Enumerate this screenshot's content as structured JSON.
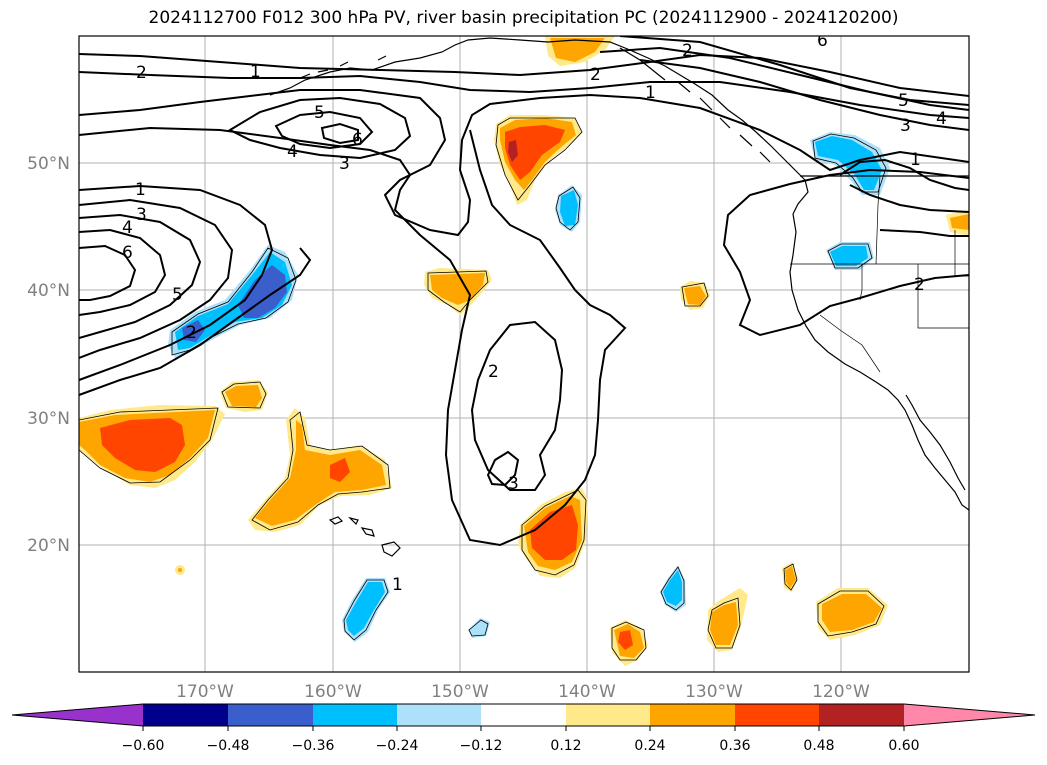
{
  "title": "2024112700 F012 300 hPa PV, river basin precipitation PC (2024112900 - 2024120200)",
  "lat_ticks": [
    "50°N",
    "40°N",
    "30°N",
    "20°N"
  ],
  "lon_ticks": [
    "170°W",
    "160°W",
    "150°W",
    "140°W",
    "130°W",
    "120°W"
  ],
  "pv_contour_labels": [
    "6",
    "2",
    "1",
    "5",
    "4",
    "6",
    "3",
    "5",
    "3",
    "4",
    "1",
    "1",
    "3",
    "4",
    "6",
    "5",
    "2",
    "2",
    "3",
    "1",
    "2",
    "2",
    "1"
  ],
  "colorbar": {
    "ticks": [
      "−0.60",
      "−0.48",
      "−0.36",
      "−0.24",
      "−0.12",
      "0.12",
      "0.24",
      "0.36",
      "0.48",
      "0.60"
    ],
    "colors": {
      "under": "#9932CC",
      "b1": "#00008B",
      "b2": "#3A5FCD",
      "b3": "#00BFFF",
      "b4": "#ADE1FA",
      "b5": "#FFFFFF",
      "b6": "#FFE98A",
      "b7": "#FFA500",
      "b8": "#FF4500",
      "b9": "#B22222",
      "over": "#FF88AA"
    }
  }
}
